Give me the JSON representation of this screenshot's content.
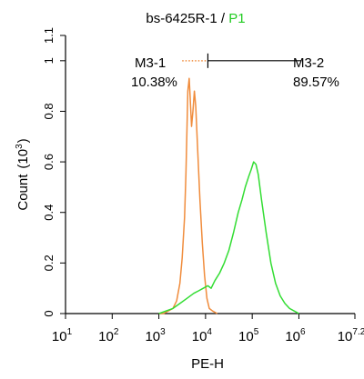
{
  "chart_data": {
    "type": "line",
    "title_prefix": "bs-6425R-1 / ",
    "title_accent": "P1",
    "title_accent_color": "#22cc22",
    "xlabel": "PE-H",
    "ylabel": "Count",
    "ylabel_unit_base": "(10",
    "ylabel_unit_exp": "3",
    "ylabel_unit_close": ")",
    "x_scale": "log",
    "xlim": [
      1,
      7.2
    ],
    "ylim": [
      0,
      1.1
    ],
    "x_ticks": [
      {
        "value": 1,
        "base": "10",
        "exp": "1"
      },
      {
        "value": 2,
        "base": "10",
        "exp": "2"
      },
      {
        "value": 3,
        "base": "10",
        "exp": "3"
      },
      {
        "value": 4,
        "base": "10",
        "exp": "4"
      },
      {
        "value": 5,
        "base": "10",
        "exp": "5"
      },
      {
        "value": 6,
        "base": "10",
        "exp": "6"
      },
      {
        "value": 7.2,
        "base": "10",
        "exp": "7.2"
      }
    ],
    "y_ticks": [
      {
        "value": 0,
        "label": "0"
      },
      {
        "value": 0.2,
        "label": "0.2"
      },
      {
        "value": 0.4,
        "label": "0.4"
      },
      {
        "value": 0.6,
        "label": "0.6"
      },
      {
        "value": 0.8,
        "label": "0.8"
      },
      {
        "value": 1,
        "label": "1"
      },
      {
        "value": 1.1,
        "label": "1.1"
      }
    ],
    "grid": false,
    "series": [
      {
        "color": "#f08c3c",
        "points": [
          [
            3.0,
            0
          ],
          [
            3.1,
            0
          ],
          [
            3.2,
            0.01
          ],
          [
            3.3,
            0.02
          ],
          [
            3.38,
            0.05
          ],
          [
            3.45,
            0.12
          ],
          [
            3.5,
            0.22
          ],
          [
            3.55,
            0.38
          ],
          [
            3.58,
            0.55
          ],
          [
            3.6,
            0.72
          ],
          [
            3.62,
            0.88
          ],
          [
            3.65,
            0.93
          ],
          [
            3.67,
            0.86
          ],
          [
            3.7,
            0.74
          ],
          [
            3.73,
            0.8
          ],
          [
            3.76,
            0.88
          ],
          [
            3.79,
            0.82
          ],
          [
            3.83,
            0.65
          ],
          [
            3.88,
            0.45
          ],
          [
            3.93,
            0.28
          ],
          [
            3.98,
            0.15
          ],
          [
            4.03,
            0.06
          ],
          [
            4.08,
            0.02
          ],
          [
            4.15,
            0.01
          ],
          [
            4.25,
            0
          ]
        ]
      },
      {
        "color": "#33dd33",
        "points": [
          [
            3.0,
            0
          ],
          [
            3.15,
            0.01
          ],
          [
            3.3,
            0.02
          ],
          [
            3.45,
            0.04
          ],
          [
            3.6,
            0.06
          ],
          [
            3.75,
            0.08
          ],
          [
            3.85,
            0.09
          ],
          [
            3.95,
            0.1
          ],
          [
            4.05,
            0.11
          ],
          [
            4.12,
            0.1
          ],
          [
            4.2,
            0.13
          ],
          [
            4.3,
            0.16
          ],
          [
            4.4,
            0.2
          ],
          [
            4.5,
            0.25
          ],
          [
            4.6,
            0.32
          ],
          [
            4.7,
            0.4
          ],
          [
            4.78,
            0.45
          ],
          [
            4.85,
            0.5
          ],
          [
            4.92,
            0.54
          ],
          [
            4.98,
            0.57
          ],
          [
            5.03,
            0.6
          ],
          [
            5.08,
            0.59
          ],
          [
            5.13,
            0.55
          ],
          [
            5.2,
            0.45
          ],
          [
            5.3,
            0.32
          ],
          [
            5.4,
            0.2
          ],
          [
            5.5,
            0.12
          ],
          [
            5.6,
            0.07
          ],
          [
            5.7,
            0.04
          ],
          [
            5.8,
            0.02
          ],
          [
            5.9,
            0.01
          ],
          [
            6.0,
            0
          ]
        ]
      }
    ],
    "markers": [
      {
        "name": "M3-1",
        "percent": "10.38%",
        "x_start": 3.5,
        "x_end": 4.05,
        "y": 1.0,
        "style": "dotted",
        "color": "#f08c3c"
      },
      {
        "name": "M3-2",
        "percent": "89.57%",
        "x_start": 4.05,
        "x_end": 6.05,
        "y": 1.0,
        "style": "solid",
        "color": "#000000"
      }
    ],
    "marker_divider_x": 4.05
  }
}
